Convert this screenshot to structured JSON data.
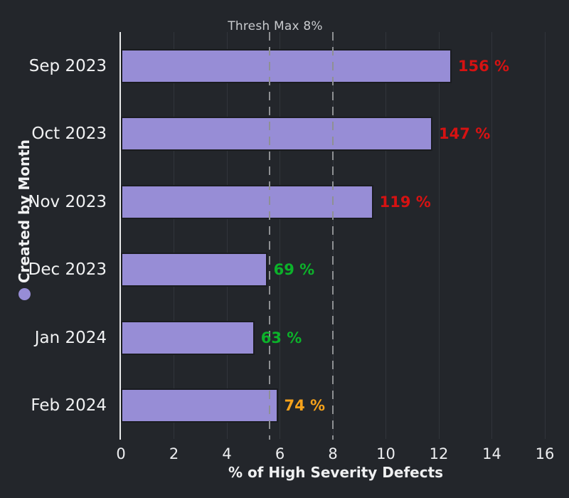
{
  "title": "Thresh Max 8%",
  "x_axis_label": "% of High Severity Defects",
  "y_axis_label": "Created by Month",
  "colors": {
    "background": "#23262b",
    "bar_fill": "#978dd6",
    "bar_border": "#1a1c20",
    "axis_line": "#e8e9ea",
    "gridline": "#31353b",
    "reference_line_dash": "#8e9093",
    "title_text": "#c9cbce",
    "text": "#f1f2f3",
    "status_red": "#d61212",
    "status_green": "#0cb22a",
    "status_orange": "#f5a21b"
  },
  "chart_data": {
    "type": "bar",
    "orientation": "horizontal",
    "title": "Thresh Max 8%",
    "xlabel": "% of High Severity Defects",
    "ylabel": "Created by Month",
    "xlim": [
      0,
      16
    ],
    "x_ticks": [
      0,
      2,
      4,
      6,
      8,
      10,
      12,
      14,
      16
    ],
    "grid": "vertical gridlines only, no horizontal gridlines",
    "legend_position": "none (purple dot marker beside y-axis label)",
    "categories": [
      "Sep 2023",
      "Oct 2023",
      "Nov 2023",
      "Dec 2023",
      "Jan 2024",
      "Feb 2024"
    ],
    "values": [
      12.48,
      11.76,
      9.52,
      5.52,
      5.04,
      5.92
    ],
    "value_labels": [
      "156 %",
      "147 %",
      "119 %",
      "69 %",
      "63 %",
      "74 %"
    ],
    "value_label_status": [
      "red",
      "red",
      "red",
      "green",
      "green",
      "orange"
    ],
    "threshold_max": 8,
    "reference_lines": [
      {
        "x": 5.6,
        "style": "dashed"
      },
      {
        "x": 8.0,
        "style": "dashed",
        "meaning": "Thresh Max 8%"
      }
    ]
  }
}
